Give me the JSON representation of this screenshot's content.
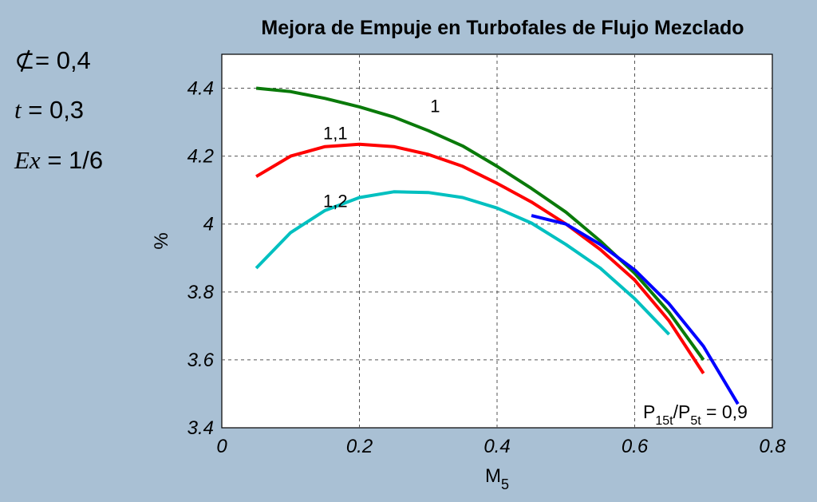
{
  "parameters": [
    {
      "symbol": "⊄",
      "text": "= 0,4"
    },
    {
      "symbol": "t",
      "text": " = 0,3"
    },
    {
      "symbol": "Ex",
      "text": " = 1/6"
    }
  ],
  "annotation": {
    "p1": "P",
    "s1": "15t",
    "slash": "/P",
    "s2": "5t",
    "rest": " = 0,9"
  },
  "chart_data": {
    "type": "line",
    "title": "Mejora de Empuje en Turbofales de Flujo Mezclado",
    "xlabel": "M",
    "xlabel_sub": "5",
    "ylabel": "%",
    "xlim": [
      0,
      0.8
    ],
    "ylim": [
      3.4,
      4.5
    ],
    "xticks": [
      0,
      0.2,
      0.4,
      0.6,
      0.8
    ],
    "xtick_labels": [
      "0",
      "0.2",
      "0.4",
      "0.6",
      "0.8"
    ],
    "yticks": [
      3.4,
      3.6,
      3.8,
      4.0,
      4.2,
      4.4
    ],
    "ytick_labels": [
      "3.4",
      "3.6",
      "3.8",
      "4",
      "4.2",
      "4.4"
    ],
    "grid": true,
    "series": [
      {
        "name": "1",
        "color": "#0a7a0a",
        "x": [
          0.05,
          0.1,
          0.15,
          0.2,
          0.25,
          0.3,
          0.35,
          0.4,
          0.45,
          0.5,
          0.55,
          0.6,
          0.65,
          0.7
        ],
        "y": [
          4.4,
          4.39,
          4.37,
          4.345,
          4.315,
          4.275,
          4.23,
          4.17,
          4.105,
          4.035,
          3.95,
          3.855,
          3.74,
          3.6
        ],
        "label_at": [
          0.31,
          4.33
        ]
      },
      {
        "name": "1,1",
        "color": "#ff0000",
        "x": [
          0.05,
          0.1,
          0.15,
          0.2,
          0.25,
          0.3,
          0.35,
          0.4,
          0.45,
          0.5,
          0.55,
          0.6,
          0.65,
          0.7
        ],
        "y": [
          4.14,
          4.2,
          4.228,
          4.235,
          4.228,
          4.205,
          4.17,
          4.12,
          4.065,
          4.0,
          3.925,
          3.835,
          3.715,
          3.56
        ],
        "label_at": [
          0.165,
          4.25
        ]
      },
      {
        "name": "1,2",
        "color": "#00c0c0",
        "x": [
          0.05,
          0.1,
          0.15,
          0.2,
          0.25,
          0.3,
          0.35,
          0.4,
          0.45,
          0.5,
          0.55,
          0.6,
          0.65
        ],
        "y": [
          3.87,
          3.975,
          4.04,
          4.078,
          4.095,
          4.093,
          4.078,
          4.047,
          4.003,
          3.94,
          3.87,
          3.78,
          3.675
        ],
        "label_at": [
          0.165,
          4.05
        ]
      },
      {
        "name": "",
        "color": "#0000ff",
        "x": [
          0.45,
          0.5,
          0.55,
          0.6,
          0.65,
          0.7,
          0.75
        ],
        "y": [
          4.025,
          4.0,
          3.94,
          3.865,
          3.765,
          3.64,
          3.47
        ]
      }
    ]
  }
}
